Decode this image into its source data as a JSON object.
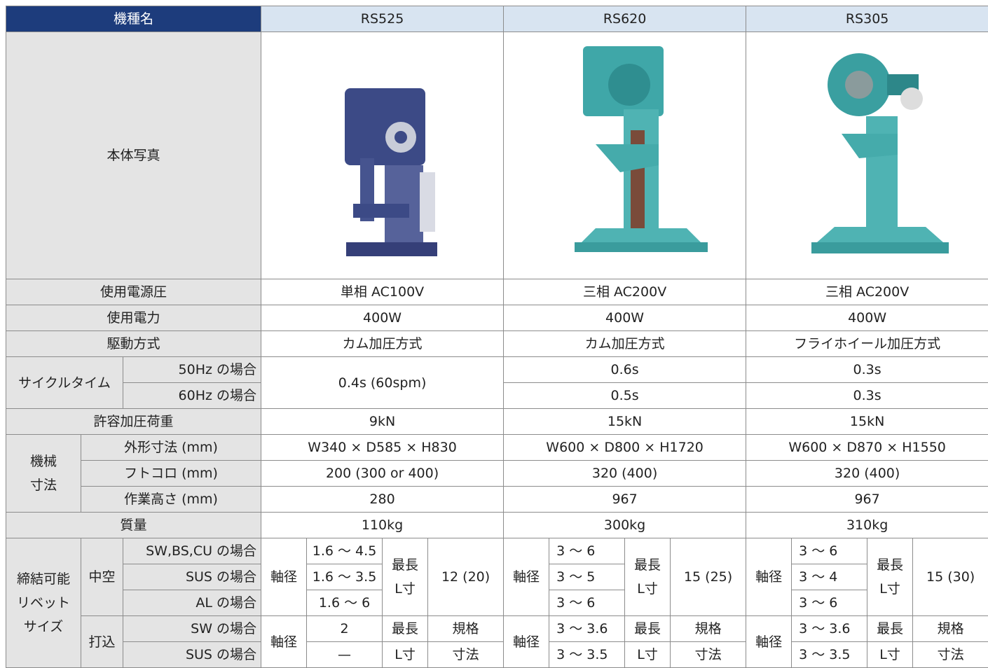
{
  "table": {
    "rows": [
      [
        "機種名",
        "RS525",
        "RS620",
        "RS305"
      ],
      [
        "本体写真"
      ],
      [
        "使用電源圧",
        "単相 AC100V",
        "三相 AC200V",
        "三相 AC200V"
      ],
      [
        "使用電力",
        "400W",
        "400W",
        "400W"
      ],
      [
        "駆動方式",
        "カム加圧方式",
        "カム加圧方式",
        "フライホイール加圧方式"
      ],
      [
        "サイクルタイム",
        "50Hz の場合",
        "0.4s (60spm)",
        "0.6s",
        "0.3s"
      ],
      [
        "60Hz の場合",
        "0.5s",
        "0.3s"
      ],
      [
        "許容加圧荷重",
        "9kN",
        "15kN",
        "15kN"
      ],
      [
        "機械\n寸法",
        "外形寸法 (mm)",
        "W340 × D585 × H830",
        "W600 × D800 × H1720",
        "W600 × D870 × H1550"
      ],
      [
        "フトコロ (mm)",
        "200 (300 or 400)",
        "320 (400)",
        "320 (400)"
      ],
      [
        "作業高さ (mm)",
        "280",
        "967",
        "967"
      ],
      [
        "質量",
        "110kg",
        "300kg",
        "310kg"
      ],
      [
        "締結可能\nリベット\nサイズ",
        "中空",
        "SW,BS,CU の場合",
        "軸径",
        "1.6 ～ 4.5",
        "最長\nL寸",
        "12 (20)",
        "軸径",
        "3 ～ 6",
        "最長\nL寸",
        "15 (25)",
        "軸径",
        "3 ～ 6",
        "最長\nL寸",
        "15 (30)"
      ],
      [
        "SUS の場合",
        "1.6 ～ 3.5",
        "3 ～ 5",
        "3 ～ 4"
      ],
      [
        "AL の場合",
        "1.6 ～ 6",
        "3 ～ 6",
        "3 ～ 6"
      ],
      [
        "打込",
        "SW の場合",
        "軸径",
        "2",
        "最長",
        "規格",
        "軸径",
        "3 ～ 3.6",
        "最長",
        "規格",
        "軸径",
        "3 ～ 3.6",
        "最長",
        "規格"
      ],
      [
        "SUS の場合",
        "—",
        "L寸",
        "寸法",
        "3 ～ 3.5",
        "L寸",
        "寸法",
        "3 ～ 3.5",
        "L寸",
        "寸法"
      ]
    ]
  }
}
